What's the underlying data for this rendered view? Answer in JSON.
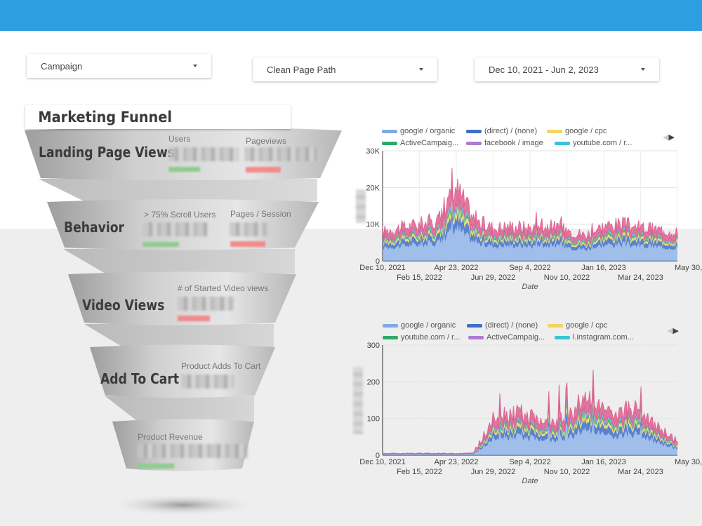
{
  "filters": {
    "campaign": "Campaign",
    "page_path": "Clean Page Path",
    "date_range": "Dec 10, 2021 - Jun 2, 2023"
  },
  "funnel": {
    "title": "Marketing Funnel",
    "stages": [
      {
        "label": "Landing Page Views",
        "metrics": [
          "Users",
          "Pageviews"
        ]
      },
      {
        "label": "Behavior",
        "metrics": [
          "> 75% Scroll Users",
          "Pages / Session"
        ]
      },
      {
        "label": "Video Views",
        "metrics": [
          "# of Started Video views"
        ]
      },
      {
        "label": "Add To Cart",
        "metrics": [
          "Product Adds To Cart"
        ]
      },
      {
        "label": "",
        "metrics": [
          "Product Revenue"
        ]
      }
    ]
  },
  "chart_data": [
    {
      "type": "area",
      "xlabel": "Date",
      "ylim": [
        0,
        30000
      ],
      "y_ticks": [
        "0",
        "10K",
        "20K",
        "30K"
      ],
      "x_ticks_top": [
        "Dec 10, 2021",
        "Apr 23, 2022",
        "Sep 4, 2022",
        "Jan 16, 2023",
        "May 30,..."
      ],
      "x_ticks_bottom": [
        "Feb 15, 2022",
        "Jun 29, 2022",
        "Nov 10, 2022",
        "Mar 24, 2023"
      ],
      "legend": [
        {
          "name": "google / organic",
          "color": "#7fa9e8"
        },
        {
          "name": "(direct) / (none)",
          "color": "#3f6fc8"
        },
        {
          "name": "google / cpc",
          "color": "#f4d35e"
        },
        {
          "name": "ActiveCampaig...",
          "color": "#2eaa6a"
        },
        {
          "name": "facebook / image",
          "color": "#b07ad6"
        },
        {
          "name": "youtube.com / r...",
          "color": "#3bc4d4"
        }
      ],
      "series_approx": {
        "dates": [
          "2021-12-10",
          "2022-01-15",
          "2022-02-15",
          "2022-03-20",
          "2022-04-23",
          "2022-05-10",
          "2022-06-29",
          "2022-08-01",
          "2022-09-04",
          "2022-10-05",
          "2022-11-10",
          "2022-12-15",
          "2023-01-16",
          "2023-02-20",
          "2023-03-24",
          "2023-04-25",
          "2023-05-30"
        ],
        "total": [
          8000,
          9000,
          10000,
          11000,
          20000,
          11000,
          9000,
          9500,
          9000,
          9500,
          8500,
          7000,
          9500,
          10000,
          9000,
          8500,
          8000
        ]
      }
    },
    {
      "type": "area",
      "xlabel": "Date",
      "ylim": [
        0,
        300
      ],
      "y_ticks": [
        "0",
        "100",
        "200",
        "300"
      ],
      "x_ticks_top": [
        "Dec 10, 2021",
        "Apr 23, 2022",
        "Sep 4, 2022",
        "Jan 16, 2023",
        "May 30,..."
      ],
      "x_ticks_bottom": [
        "Feb 15, 2022",
        "Jun 29, 2022",
        "Nov 10, 2022",
        "Mar 24, 2023"
      ],
      "legend": [
        {
          "name": "google / organic",
          "color": "#7fa9e8"
        },
        {
          "name": "(direct) / (none)",
          "color": "#3f6fc8"
        },
        {
          "name": "google / cpc",
          "color": "#f4d35e"
        },
        {
          "name": "youtube.com / r...",
          "color": "#2eaa6a"
        },
        {
          "name": "ActiveCampaig...",
          "color": "#b07ad6"
        },
        {
          "name": "l.instagram.com...",
          "color": "#3bc4d4"
        }
      ],
      "series_approx": {
        "dates": [
          "2021-12-10",
          "2022-02-15",
          "2022-04-23",
          "2022-06-29",
          "2022-09-01",
          "2022-09-04",
          "2022-10-20",
          "2022-11-10",
          "2022-12-15",
          "2023-01-16",
          "2023-02-20",
          "2023-03-24",
          "2023-04-25",
          "2023-05-30"
        ],
        "total": [
          5,
          5,
          5,
          5,
          5,
          110,
          120,
          90,
          100,
          150,
          110,
          130,
          80,
          40
        ]
      }
    }
  ]
}
